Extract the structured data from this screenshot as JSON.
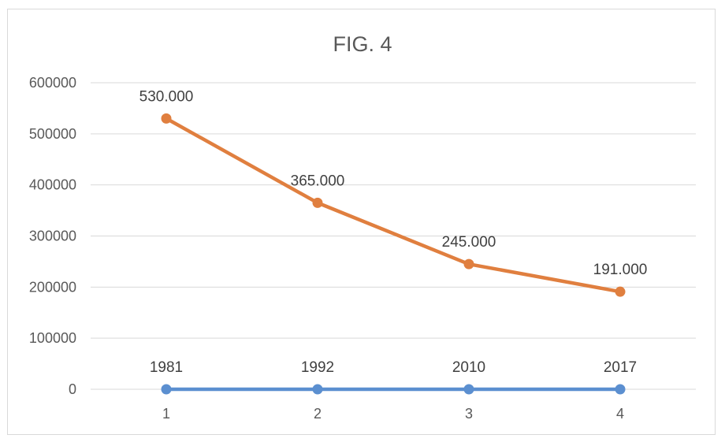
{
  "chart_data": {
    "type": "line",
    "title": "FIG. 4",
    "xlabel": "",
    "ylabel": "",
    "categories": [
      "1",
      "2",
      "3",
      "4"
    ],
    "ylim": [
      0,
      600000
    ],
    "yticks": [
      "0",
      "100000",
      "200000",
      "300000",
      "400000",
      "500000",
      "600000"
    ],
    "grid": true,
    "legend": "none",
    "series": [
      {
        "color": "#5b8fd0",
        "values": [
          0,
          0,
          0,
          0
        ],
        "data_labels": [
          "1981",
          "1992",
          "2010",
          "2017"
        ]
      },
      {
        "color": "#e07f3f",
        "values": [
          530000,
          365000,
          245000,
          191000
        ],
        "data_labels": [
          "530.000",
          "365.000",
          "245.000",
          "191.000"
        ]
      }
    ]
  }
}
